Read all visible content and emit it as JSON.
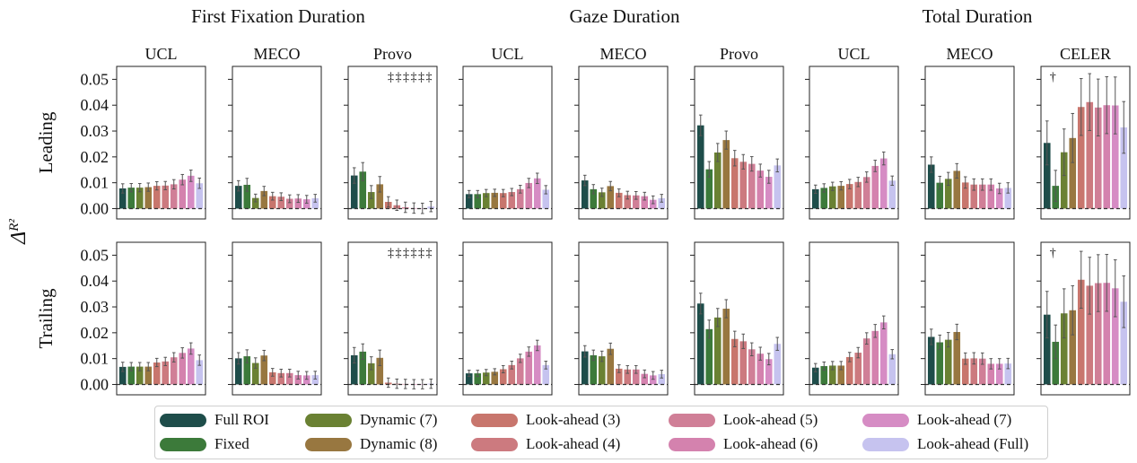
{
  "figure": {
    "y_axis_label": "Δ",
    "y_axis_label_sub": "R²"
  },
  "chart_data": {
    "type": "bar",
    "group_titles": [
      "First Fixation Duration",
      "Gaze Duration",
      "Total Duration"
    ],
    "row_labels": [
      "Leading",
      "Trailing"
    ],
    "ylim": [
      -0.004,
      0.055
    ],
    "yticks": [
      0.0,
      0.01,
      0.02,
      0.03,
      0.04,
      0.05
    ],
    "ytick_labels": [
      "0.00",
      "0.01",
      "0.02",
      "0.03",
      "0.04",
      "0.05"
    ],
    "baseline": 0.0,
    "series_names": [
      "Full ROI",
      "Fixed",
      "Dynamic (7)",
      "Dynamic (8)",
      "Look-ahead (3)",
      "Look-ahead (4)",
      "Look-ahead (5)",
      "Look-ahead (6)",
      "Look-ahead (7)",
      "Look-ahead (Full)"
    ],
    "series_colors": [
      "#1e4d4a",
      "#3c7a3a",
      "#6a8133",
      "#987740",
      "#c8766d",
      "#cc7a7f",
      "#d07f97",
      "#d482ae",
      "#d68cc4",
      "#c6c3ef"
    ],
    "panels": [
      {
        "group": "First Fixation Duration",
        "dataset": "UCL",
        "annotation": "",
        "leading": {
          "values": [
            0.0078,
            0.0081,
            0.0081,
            0.0083,
            0.0088,
            0.0089,
            0.0094,
            0.0112,
            0.0127,
            0.0098
          ],
          "errors": [
            0.0018,
            0.0016,
            0.0016,
            0.0016,
            0.0016,
            0.0016,
            0.0018,
            0.002,
            0.0022,
            0.002
          ]
        },
        "trailing": {
          "values": [
            0.0068,
            0.0069,
            0.0069,
            0.0069,
            0.0085,
            0.0089,
            0.0105,
            0.0122,
            0.0139,
            0.0094
          ],
          "errors": [
            0.0018,
            0.0016,
            0.0016,
            0.0016,
            0.0016,
            0.0016,
            0.0018,
            0.002,
            0.0022,
            0.002
          ]
        }
      },
      {
        "group": "First Fixation Duration",
        "dataset": "MECO",
        "annotation": "",
        "leading": {
          "values": [
            0.0088,
            0.0092,
            0.0041,
            0.0068,
            0.0048,
            0.0046,
            0.0038,
            0.0039,
            0.0036,
            0.004
          ],
          "errors": [
            0.002,
            0.0025,
            0.0015,
            0.0018,
            0.0015,
            0.0015,
            0.0015,
            0.0015,
            0.0015,
            0.0015
          ]
        },
        "trailing": {
          "values": [
            0.0101,
            0.0109,
            0.0083,
            0.0112,
            0.0047,
            0.0044,
            0.0044,
            0.0036,
            0.0035,
            0.0036
          ],
          "errors": [
            0.0022,
            0.0025,
            0.002,
            0.002,
            0.0015,
            0.0015,
            0.0015,
            0.0015,
            0.0015,
            0.0015
          ]
        }
      },
      {
        "group": "First Fixation Duration",
        "dataset": "Provo",
        "annotation": "‡‡‡‡‡‡",
        "leading": {
          "values": [
            0.0128,
            0.0143,
            0.0064,
            0.0094,
            0.0026,
            0.0013,
            0.0005,
            0.0002,
            0.0001,
            0.0008
          ],
          "errors": [
            0.003,
            0.0035,
            0.0025,
            0.003,
            0.002,
            0.002,
            0.002,
            0.002,
            0.002,
            0.002
          ]
        },
        "trailing": {
          "values": [
            0.0113,
            0.0127,
            0.0082,
            0.0103,
            0.0007,
            0.0003,
            0.0002,
            0.0001,
            0.0001,
            0.0003
          ],
          "errors": [
            0.003,
            0.003,
            0.0025,
            0.003,
            0.0018,
            0.0018,
            0.0018,
            0.0018,
            0.0018,
            0.0018
          ]
        }
      },
      {
        "group": "Gaze Duration",
        "dataset": "UCL",
        "annotation": "",
        "leading": {
          "values": [
            0.0056,
            0.0056,
            0.006,
            0.0061,
            0.006,
            0.0064,
            0.0075,
            0.0099,
            0.0117,
            0.0073
          ],
          "errors": [
            0.0014,
            0.0014,
            0.0014,
            0.0014,
            0.0014,
            0.0014,
            0.0015,
            0.0018,
            0.002,
            0.0016
          ]
        },
        "trailing": {
          "values": [
            0.0043,
            0.0043,
            0.0046,
            0.0049,
            0.0059,
            0.0075,
            0.0101,
            0.0127,
            0.0151,
            0.0075
          ],
          "errors": [
            0.0012,
            0.0012,
            0.0012,
            0.0012,
            0.0014,
            0.0015,
            0.0016,
            0.0018,
            0.002,
            0.0015
          ]
        }
      },
      {
        "group": "Gaze Duration",
        "dataset": "MECO",
        "annotation": "",
        "leading": {
          "values": [
            0.0109,
            0.0075,
            0.0063,
            0.0087,
            0.0061,
            0.0052,
            0.0051,
            0.0048,
            0.0034,
            0.004
          ],
          "errors": [
            0.002,
            0.0018,
            0.0016,
            0.0018,
            0.0015,
            0.0015,
            0.0015,
            0.0015,
            0.0015,
            0.0015
          ]
        },
        "trailing": {
          "values": [
            0.0128,
            0.0113,
            0.0109,
            0.0138,
            0.0061,
            0.0058,
            0.0058,
            0.0041,
            0.0035,
            0.004
          ],
          "errors": [
            0.0022,
            0.002,
            0.002,
            0.0022,
            0.0015,
            0.0015,
            0.0015,
            0.0015,
            0.0015,
            0.0015
          ]
        }
      },
      {
        "group": "Gaze Duration",
        "dataset": "Provo",
        "annotation": "",
        "leading": {
          "values": [
            0.0322,
            0.0152,
            0.0217,
            0.0265,
            0.0195,
            0.0181,
            0.0173,
            0.0147,
            0.0123,
            0.0167
          ],
          "errors": [
            0.004,
            0.003,
            0.0035,
            0.0035,
            0.003,
            0.0028,
            0.0028,
            0.0025,
            0.0025,
            0.0025
          ]
        },
        "trailing": {
          "values": [
            0.0313,
            0.0214,
            0.0259,
            0.0293,
            0.0176,
            0.0167,
            0.0136,
            0.0119,
            0.0098,
            0.0157
          ],
          "errors": [
            0.004,
            0.0035,
            0.0035,
            0.0035,
            0.003,
            0.0028,
            0.0025,
            0.0025,
            0.0022,
            0.0025
          ]
        }
      },
      {
        "group": "Total Duration",
        "dataset": "UCL",
        "annotation": "",
        "leading": {
          "values": [
            0.0075,
            0.008,
            0.0086,
            0.0088,
            0.0095,
            0.0103,
            0.0122,
            0.0165,
            0.0194,
            0.0108
          ],
          "errors": [
            0.0016,
            0.0016,
            0.0016,
            0.0016,
            0.0018,
            0.0018,
            0.002,
            0.0022,
            0.0025,
            0.0018
          ]
        },
        "trailing": {
          "values": [
            0.0065,
            0.0071,
            0.0073,
            0.0073,
            0.0106,
            0.0123,
            0.0178,
            0.0207,
            0.024,
            0.0117
          ],
          "errors": [
            0.0016,
            0.0016,
            0.0016,
            0.0016,
            0.0018,
            0.002,
            0.0022,
            0.0025,
            0.0025,
            0.0018
          ]
        }
      },
      {
        "group": "Total Duration",
        "dataset": "MECO",
        "annotation": "",
        "leading": {
          "values": [
            0.017,
            0.01,
            0.0115,
            0.0146,
            0.0101,
            0.0093,
            0.0093,
            0.0093,
            0.0078,
            0.008
          ],
          "errors": [
            0.003,
            0.0025,
            0.0025,
            0.0028,
            0.0022,
            0.0022,
            0.0022,
            0.0022,
            0.002,
            0.002
          ]
        },
        "trailing": {
          "values": [
            0.0184,
            0.0163,
            0.0173,
            0.0203,
            0.01,
            0.0101,
            0.01,
            0.008,
            0.008,
            0.0081
          ],
          "errors": [
            0.003,
            0.0028,
            0.0028,
            0.003,
            0.0022,
            0.0022,
            0.0022,
            0.002,
            0.002,
            0.002
          ]
        }
      },
      {
        "group": "Total Duration",
        "dataset": "CELER",
        "annotation": "†",
        "leading": {
          "values": [
            0.0254,
            0.0088,
            0.0218,
            0.0273,
            0.0393,
            0.0412,
            0.0391,
            0.04,
            0.0399,
            0.0314
          ],
          "errors": [
            0.0085,
            0.006,
            0.009,
            0.0095,
            0.011,
            0.011,
            0.011,
            0.011,
            0.011,
            0.01
          ]
        },
        "trailing": {
          "values": [
            0.027,
            0.0165,
            0.0275,
            0.0287,
            0.0405,
            0.0382,
            0.0392,
            0.0393,
            0.0372,
            0.032
          ],
          "errors": [
            0.009,
            0.0065,
            0.0095,
            0.0095,
            0.011,
            0.011,
            0.011,
            0.011,
            0.011,
            0.01
          ]
        }
      }
    ]
  },
  "legend": {
    "items": [
      "Full ROI",
      "Fixed",
      "Dynamic (7)",
      "Dynamic (8)",
      "Look-ahead (3)",
      "Look-ahead (4)",
      "Look-ahead (5)",
      "Look-ahead (6)",
      "Look-ahead (7)",
      "Look-ahead (Full)"
    ]
  }
}
